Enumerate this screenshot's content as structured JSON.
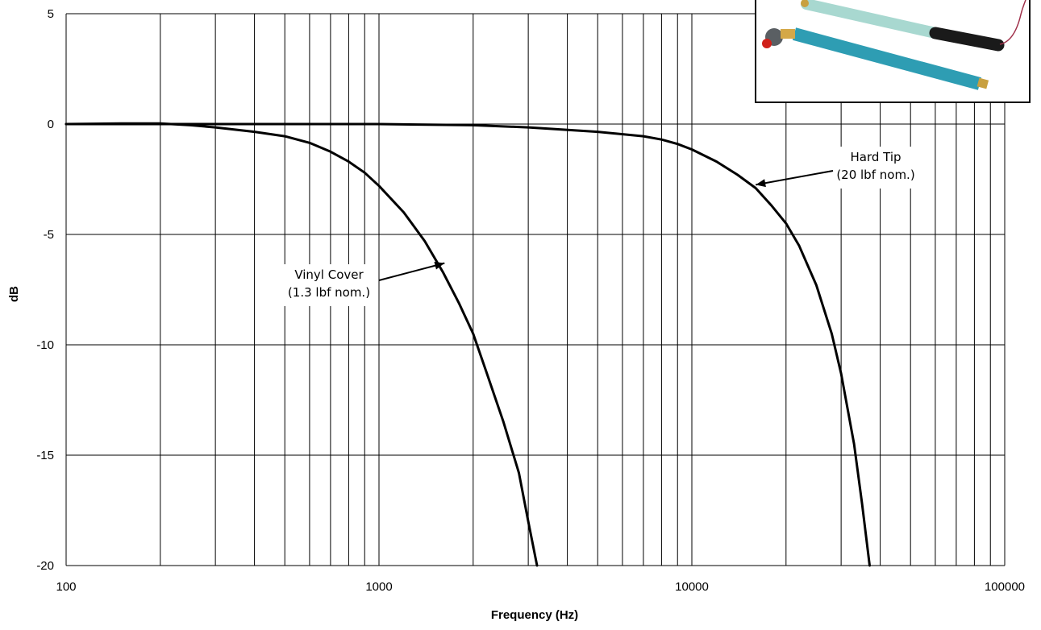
{
  "chart_data": {
    "type": "line",
    "xscale": "log",
    "xlim": [
      100,
      100000
    ],
    "ylim": [
      -20,
      5
    ],
    "xlabel": "Frequency (Hz)",
    "ylabel": "dB",
    "x_ticks": [
      "100",
      "1000",
      "10000",
      "100000"
    ],
    "y_ticks": [
      "5",
      "0",
      "-5",
      "-10",
      "-15",
      "-20"
    ],
    "grid": true,
    "series": [
      {
        "name": "Hard Tip",
        "x": [
          100,
          200,
          500,
          1000,
          2000,
          3000,
          5000,
          7000,
          8000,
          9000,
          10000,
          12000,
          14000,
          16000,
          18000,
          20000,
          22000,
          25000,
          28000,
          30000,
          33000,
          35000,
          37000
        ],
        "y": [
          0,
          0,
          0,
          0,
          -0.05,
          -0.15,
          -0.35,
          -0.55,
          -0.7,
          -0.9,
          -1.15,
          -1.7,
          -2.3,
          -2.9,
          -3.7,
          -4.5,
          -5.5,
          -7.3,
          -9.5,
          -11.3,
          -14.5,
          -17.2,
          -20
        ]
      },
      {
        "name": "Vinyl Cover",
        "x": [
          100,
          150,
          200,
          250,
          300,
          400,
          500,
          600,
          700,
          800,
          900,
          1000,
          1200,
          1400,
          1600,
          1800,
          2000,
          2200,
          2500,
          2800,
          3000,
          3200
        ],
        "y": [
          0,
          0.03,
          0.03,
          -0.05,
          -0.15,
          -0.35,
          -0.55,
          -0.85,
          -1.25,
          -1.7,
          -2.2,
          -2.8,
          -4.0,
          -5.3,
          -6.7,
          -8.1,
          -9.5,
          -11.2,
          -13.5,
          -15.8,
          -18.0,
          -20
        ]
      }
    ],
    "annotations": [
      {
        "lines": [
          "Hard Tip",
          "(20 lbf nom.)"
        ],
        "target_x": 16000,
        "target_y": -2.75
      },
      {
        "lines": [
          "Vinyl Cover",
          "(1.3 lbf nom.)"
        ],
        "target_x": 1620,
        "target_y": -6.3
      }
    ]
  }
}
